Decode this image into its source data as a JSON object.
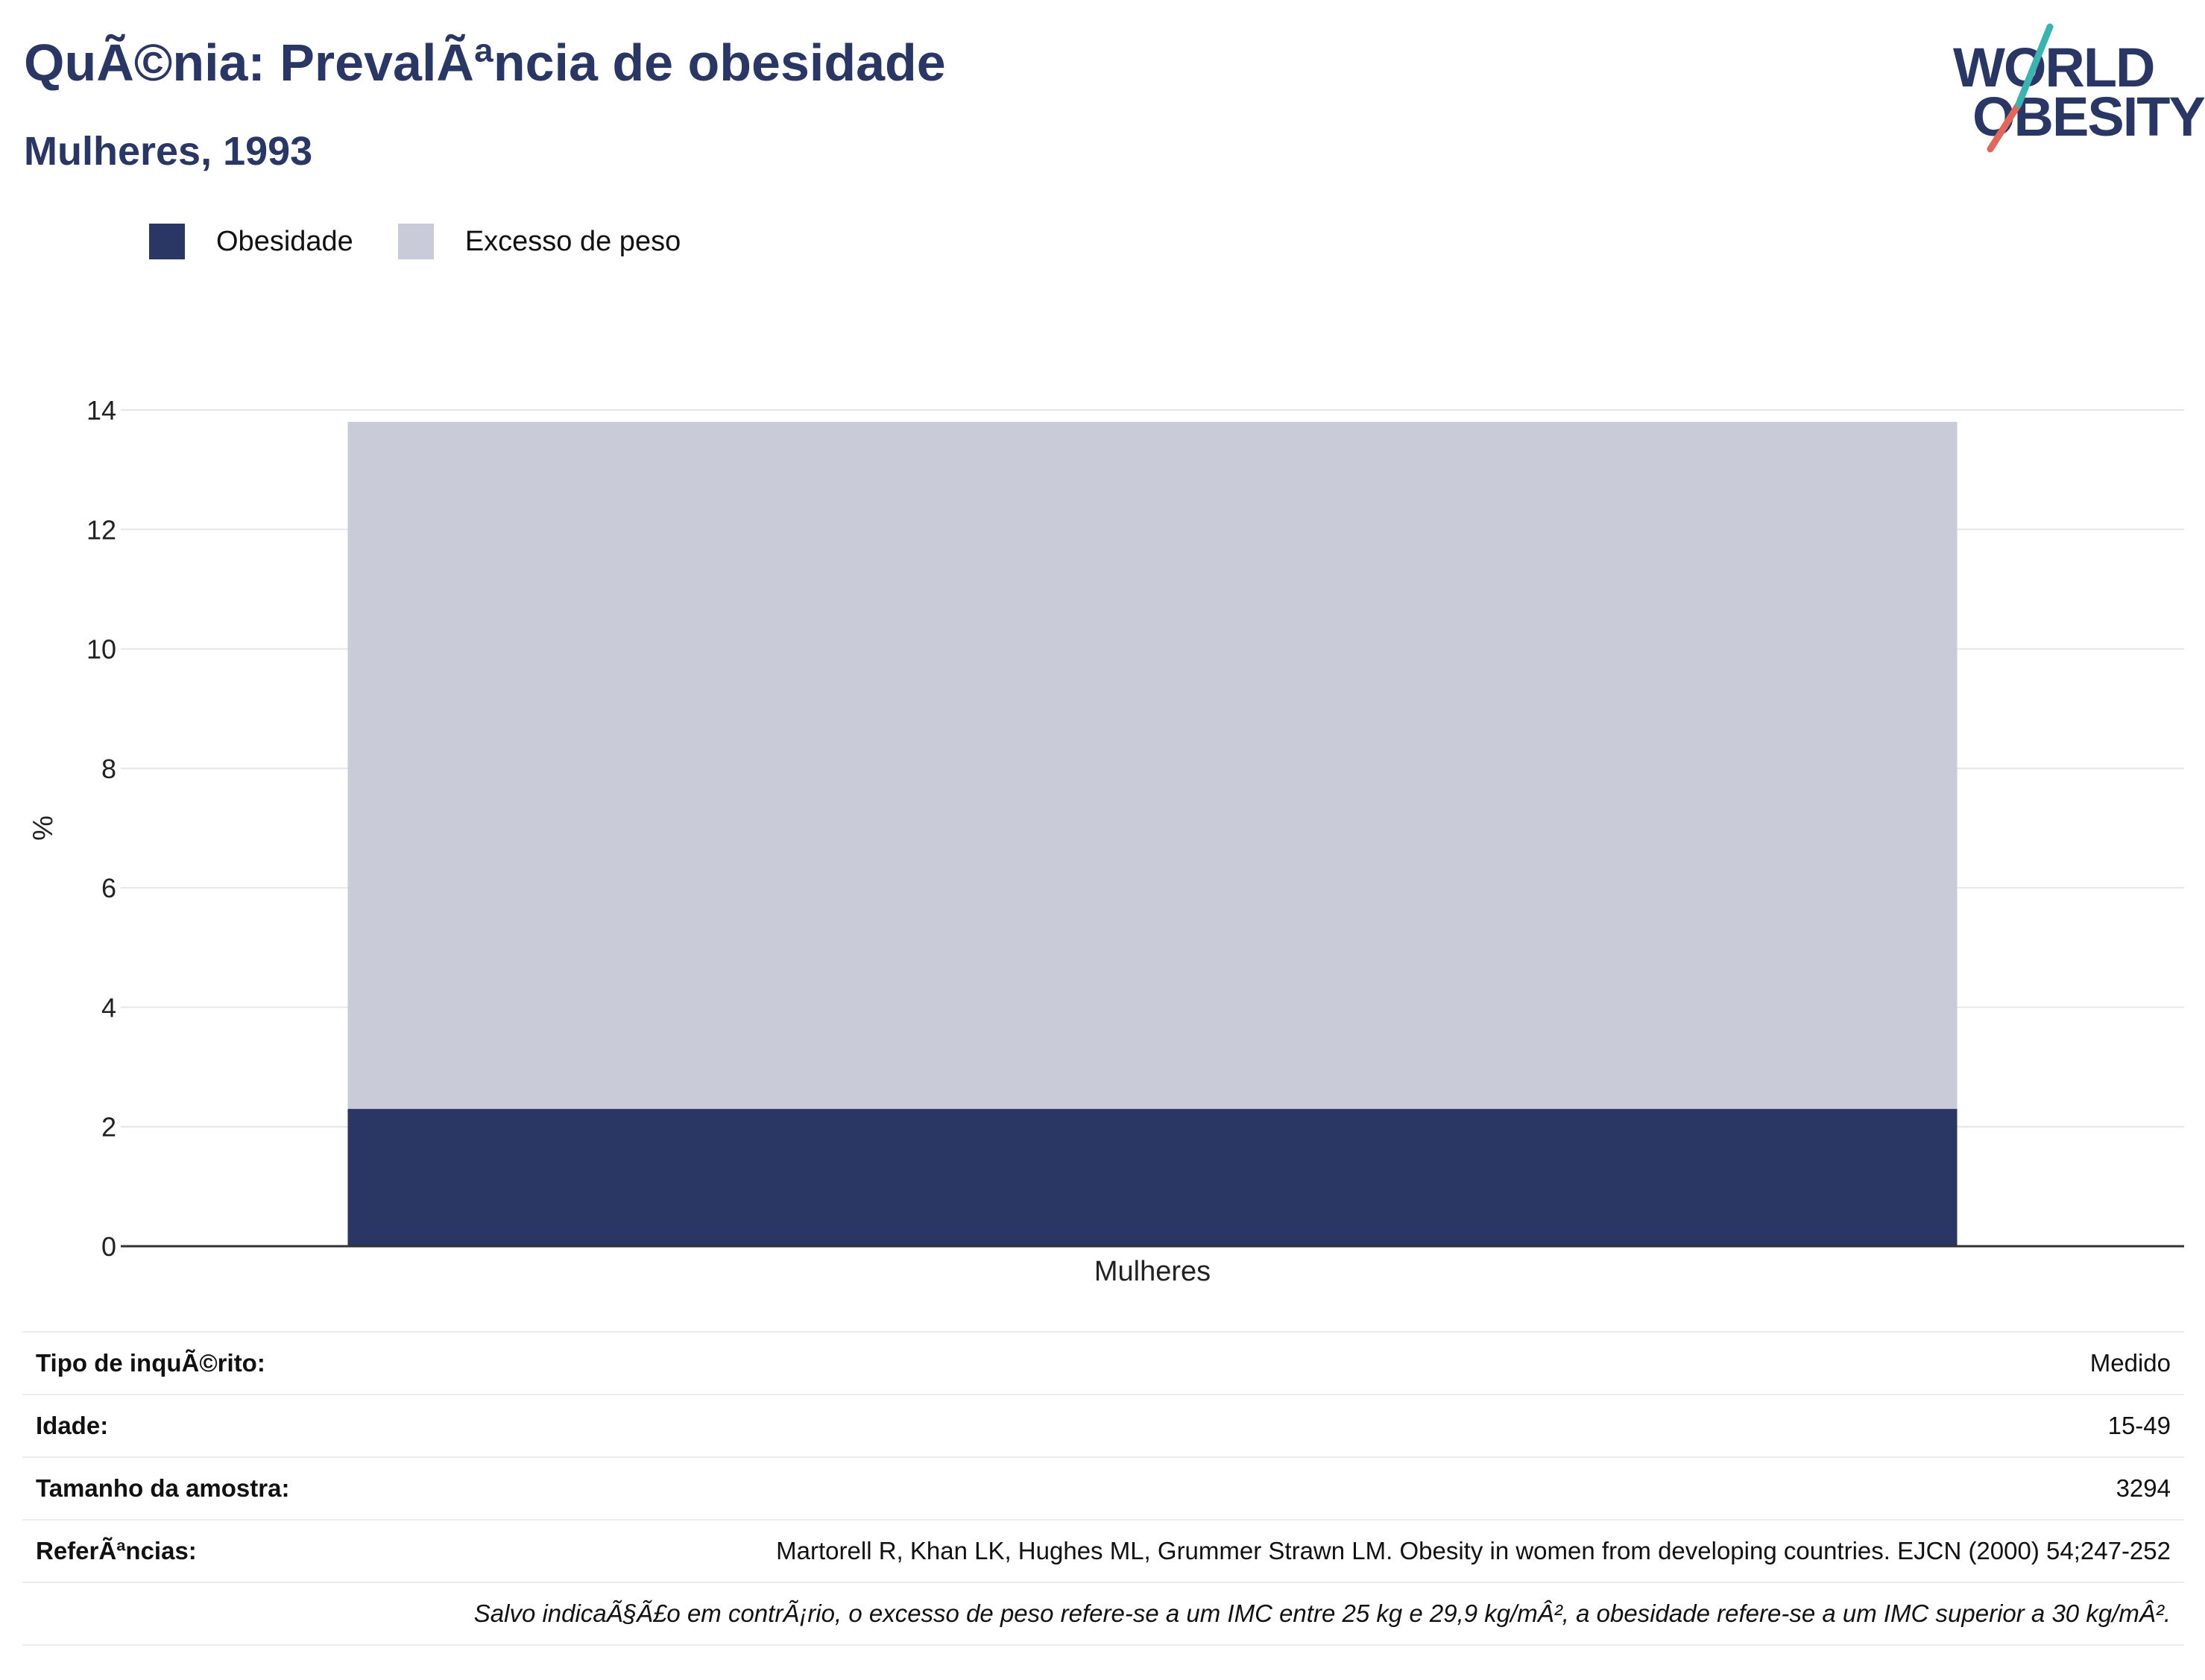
{
  "header": {
    "title": "QuÃ©nia: PrevalÃªncia de obesidade",
    "subtitle": "Mulheres, 1993"
  },
  "logo": {
    "line1": "WORLD",
    "line2": "OBESITY",
    "colors": {
      "text": "#2a3664",
      "accent_teal": "#3bb3b0",
      "accent_red": "#e0675a"
    }
  },
  "legend": [
    {
      "label": "Obesidade",
      "color": "#2a3664"
    },
    {
      "label": "Excesso de peso",
      "color": "#c9ccd8"
    }
  ],
  "chart_data": {
    "type": "bar",
    "stacked": true,
    "categories": [
      "Mulheres"
    ],
    "series": [
      {
        "name": "Obesidade",
        "values": [
          2.3
        ],
        "color": "#2a3664"
      },
      {
        "name": "Excesso de peso",
        "values": [
          11.5
        ],
        "color": "#c9ccd8"
      }
    ],
    "xlabel": "",
    "ylabel": "%",
    "ylim": [
      0,
      14
    ],
    "yticks": [
      0,
      2,
      4,
      6,
      8,
      10,
      12,
      14
    ],
    "grid": true,
    "legend_position": "top-left"
  },
  "info": {
    "rows": [
      {
        "label": "Tipo de inquÃ©rito:",
        "value": "Medido"
      },
      {
        "label": "Idade:",
        "value": "15-49"
      },
      {
        "label": "Tamanho da amostra:",
        "value": "3294"
      },
      {
        "label": "ReferÃªncias:",
        "value": "Martorell R, Khan LK, Hughes ML, Grummer Strawn LM. Obesity in women from developing countries. EJCN (2000) 54;247-252"
      }
    ],
    "note": "Salvo indicaÃ§Ã£o em contrÃ¡rio, o excesso de peso refere-se a um IMC entre 25 kg e 29,9 kg/mÂ², a obesidade refere-se a um IMC superior a 30 kg/mÂ²."
  }
}
